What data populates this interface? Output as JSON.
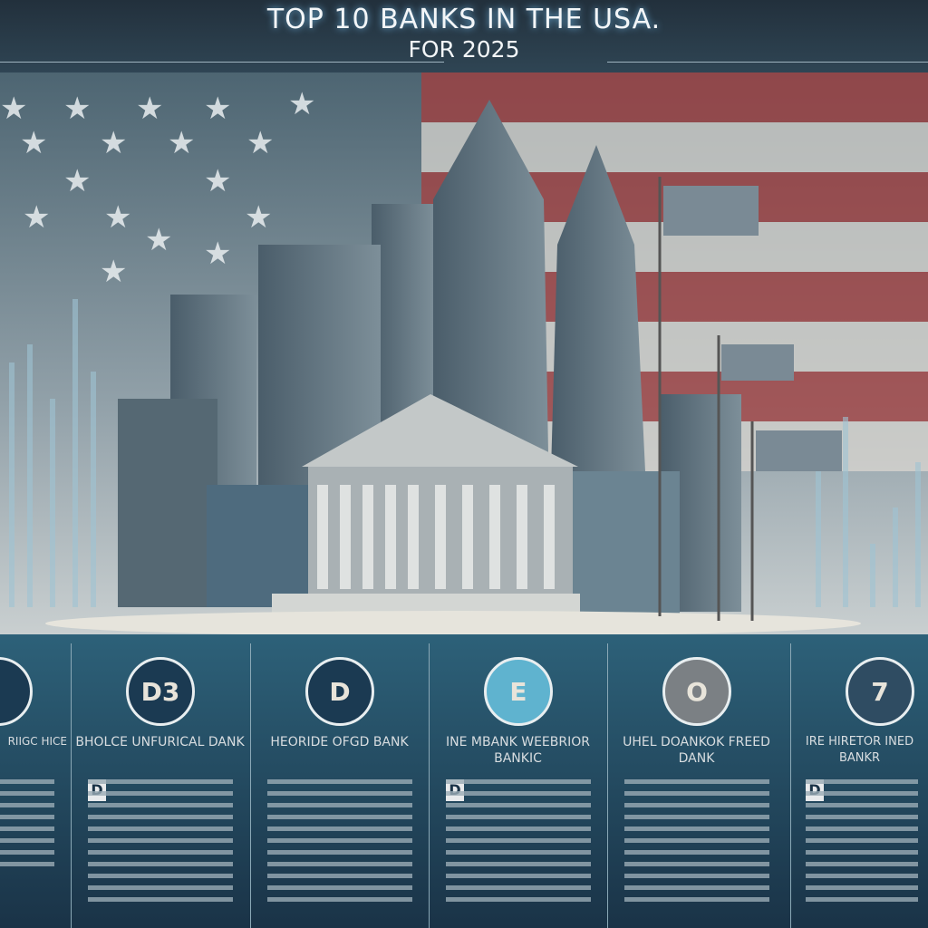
{
  "header": {
    "title": "TOP 10 BANKS IN THE USA.",
    "subtitle": "FOR 2025"
  },
  "colors": {
    "flag_red": "#a53e3e",
    "flag_white": "#d9d6d0",
    "card_bg": "#1f4258",
    "accent_teal": "#5fb3cf"
  },
  "cards": [
    {
      "badge": "",
      "title": "RIIGC HICE",
      "lead": ""
    },
    {
      "badge": "D3",
      "title": "BHOLCE UNFURICAL DANK",
      "lead": "D"
    },
    {
      "badge": "D",
      "title": "HEORIDE OFGD BANK",
      "lead": ""
    },
    {
      "badge": "E",
      "title": "INE MBANK WEEBRIOR BANKIC",
      "lead": "D"
    },
    {
      "badge": "O",
      "title": "UHEL DOANKOK FREED DANK",
      "lead": ""
    },
    {
      "badge": "7",
      "title": "IRE HIRETOR INED BANKR",
      "lead": "D"
    }
  ]
}
